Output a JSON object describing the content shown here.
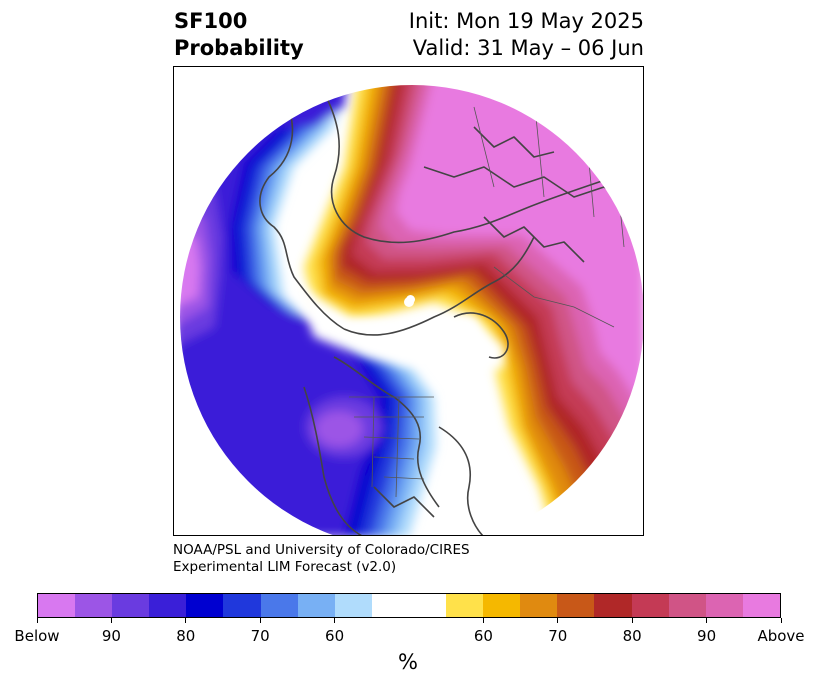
{
  "title": {
    "line1": "SF100",
    "line2": "Probability",
    "init": "Init: Mon 19 May 2025",
    "valid": "Valid: 31 May – 06 Jun"
  },
  "credit": {
    "line1": "NOAA/PSL and University of Colorado/CIRES",
    "line2": "Experimental LIM Forecast (v2.0)"
  },
  "colorbar": {
    "unit": "%",
    "colors": [
      "#d878f0",
      "#9c55e6",
      "#6a3be0",
      "#3a1fd8",
      "#0000d0",
      "#2038dc",
      "#4a78ea",
      "#78b0f4",
      "#b0dcfc",
      "#ffffff",
      "#ffffff",
      "#ffe14a",
      "#f5b800",
      "#e08a10",
      "#c85818",
      "#b02828",
      "#c43a55",
      "#d05486",
      "#dc64b2",
      "#e87ae0"
    ],
    "tick_labels": [
      "Below",
      "90",
      "80",
      "70",
      "60",
      "60",
      "70",
      "80",
      "90",
      "Above"
    ]
  }
}
